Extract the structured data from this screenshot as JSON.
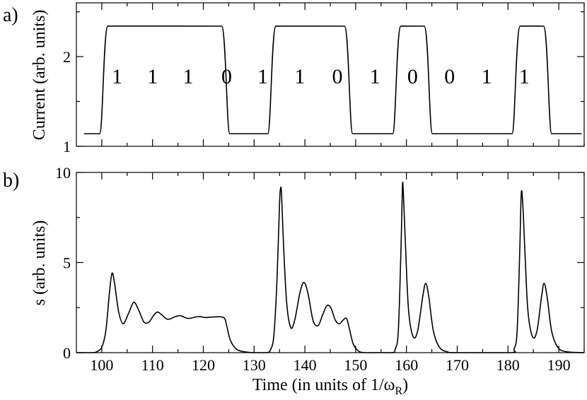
{
  "chart_data": [
    {
      "panel": "a)",
      "type": "line",
      "ylabel": "Current (arb. units)",
      "xlabel": "",
      "xlim": [
        95,
        195
      ],
      "ylim": [
        1,
        2.6
      ],
      "yticks": [
        1,
        2
      ],
      "grid": false,
      "low_level": 1.14,
      "high_level": 2.34,
      "pulses": [
        {
          "rise": 100.6,
          "fall": 124.2
        },
        {
          "rise": 133.7,
          "fall": 148.4
        },
        {
          "rise": 158.3,
          "fall": 164.1
        },
        {
          "rise": 181.8,
          "fall": 187.6
        }
      ],
      "bits": [
        "1",
        "1",
        "1",
        "0",
        "1",
        "1",
        "0",
        "1",
        "0",
        "0",
        "1",
        "1"
      ],
      "bit_positions": [
        103.0,
        110.0,
        117.0,
        124.6,
        131.7,
        139.0,
        146.4,
        153.8,
        161.2,
        168.5,
        175.8,
        183.2
      ]
    },
    {
      "panel": "b)",
      "type": "line",
      "ylabel": "s (arb. units)",
      "xlabel": "Time (in units of 1/ω",
      "xlabel_sub": "R",
      "xlabel_close": ")",
      "xlim": [
        95,
        195
      ],
      "ylim": [
        0,
        10
      ],
      "yticks": [
        0,
        5,
        10
      ],
      "xticks": [
        100,
        110,
        120,
        130,
        140,
        150,
        160,
        170,
        180,
        190
      ],
      "grid": false,
      "points": [
        [
          95,
          0.0
        ],
        [
          98,
          0.0
        ],
        [
          99,
          0.05
        ],
        [
          100,
          0.3
        ],
        [
          100.8,
          1.2
        ],
        [
          101.5,
          3.3
        ],
        [
          102.0,
          4.4
        ],
        [
          102.5,
          3.9
        ],
        [
          103.3,
          2.3
        ],
        [
          104.2,
          1.6
        ],
        [
          105.3,
          2.2
        ],
        [
          106.3,
          2.8
        ],
        [
          107.2,
          2.4
        ],
        [
          108.3,
          1.7
        ],
        [
          109.3,
          1.7
        ],
        [
          110.3,
          2.1
        ],
        [
          111.0,
          2.25
        ],
        [
          111.8,
          2.1
        ],
        [
          113.0,
          1.85
        ],
        [
          114.5,
          2.0
        ],
        [
          115.5,
          2.05
        ],
        [
          117.0,
          1.9
        ],
        [
          119.0,
          2.0
        ],
        [
          120.5,
          1.95
        ],
        [
          122.0,
          1.98
        ],
        [
          124.0,
          1.95
        ],
        [
          124.6,
          1.5
        ],
        [
          125.3,
          0.7
        ],
        [
          126.5,
          0.2
        ],
        [
          128,
          0.05
        ],
        [
          130,
          0.0
        ],
        [
          132.5,
          0.0
        ],
        [
          133.3,
          0.2
        ],
        [
          133.9,
          1.0
        ],
        [
          134.5,
          4.0
        ],
        [
          135.0,
          8.2
        ],
        [
          135.2,
          9.1
        ],
        [
          135.4,
          8.8
        ],
        [
          135.8,
          6.0
        ],
        [
          136.4,
          2.8
        ],
        [
          137.2,
          1.4
        ],
        [
          138.0,
          1.8
        ],
        [
          139.0,
          3.3
        ],
        [
          139.8,
          3.9
        ],
        [
          140.6,
          3.3
        ],
        [
          141.6,
          1.8
        ],
        [
          142.6,
          1.5
        ],
        [
          143.5,
          2.1
        ],
        [
          144.3,
          2.6
        ],
        [
          145.1,
          2.5
        ],
        [
          146.0,
          1.8
        ],
        [
          146.8,
          1.6
        ],
        [
          147.5,
          1.8
        ],
        [
          148.2,
          1.9
        ],
        [
          148.7,
          1.4
        ],
        [
          149.5,
          0.5
        ],
        [
          150.5,
          0.1
        ],
        [
          152,
          0.0
        ],
        [
          157,
          0.0
        ],
        [
          157.8,
          0.2
        ],
        [
          158.4,
          1.2
        ],
        [
          158.9,
          5.5
        ],
        [
          159.2,
          9.2
        ],
        [
          159.4,
          8.8
        ],
        [
          159.8,
          6.0
        ],
        [
          160.4,
          2.4
        ],
        [
          161.3,
          0.9
        ],
        [
          162.2,
          1.2
        ],
        [
          163.2,
          3.1
        ],
        [
          163.8,
          3.85
        ],
        [
          164.4,
          3.1
        ],
        [
          165.3,
          1.2
        ],
        [
          166.5,
          0.3
        ],
        [
          168,
          0.05
        ],
        [
          170,
          0.0
        ],
        [
          180.5,
          0.0
        ],
        [
          181.2,
          0.2
        ],
        [
          181.8,
          1.2
        ],
        [
          182.3,
          5.5
        ],
        [
          182.6,
          8.8
        ],
        [
          182.9,
          8.3
        ],
        [
          183.3,
          5.8
        ],
        [
          183.9,
          2.4
        ],
        [
          184.8,
          0.9
        ],
        [
          185.7,
          1.2
        ],
        [
          186.6,
          3.1
        ],
        [
          187.1,
          3.85
        ],
        [
          187.7,
          3.1
        ],
        [
          188.6,
          1.2
        ],
        [
          189.8,
          0.3
        ],
        [
          191.5,
          0.05
        ],
        [
          195,
          0.0
        ]
      ]
    }
  ]
}
